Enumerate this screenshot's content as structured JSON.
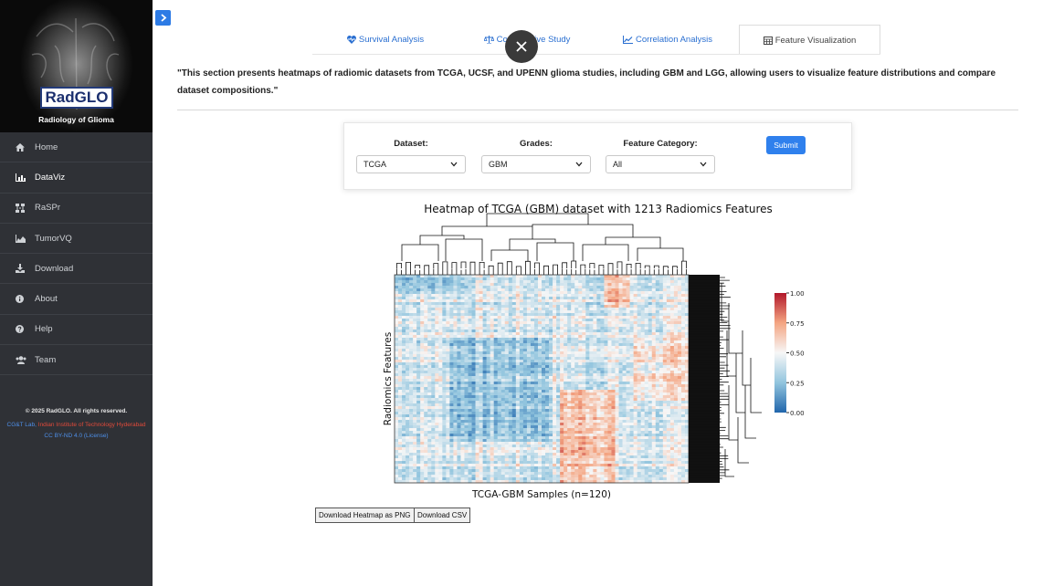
{
  "brand": {
    "logo": "RadGLO",
    "subtitle": "Radiology of Glioma"
  },
  "sidebar": {
    "items": [
      {
        "label": "Home",
        "icon": "home-icon"
      },
      {
        "label": "DataViz",
        "icon": "bar-chart-icon",
        "active": true
      },
      {
        "label": "RaSPr",
        "icon": "network-icon"
      },
      {
        "label": "TumorVQ",
        "icon": "area-chart-icon"
      },
      {
        "label": "Download",
        "icon": "download-icon"
      },
      {
        "label": "About",
        "icon": "info-icon"
      },
      {
        "label": "Help",
        "icon": "help-icon"
      },
      {
        "label": "Team",
        "icon": "users-icon"
      }
    ],
    "footer": {
      "copyright": "© 2025 RadGLO. All rights reserved.",
      "lab": "CG&T Lab,",
      "institute": "Indian Institute of Technology Hyderabad",
      "license": "CC BY-ND 4.0 (License)"
    }
  },
  "tabs": [
    {
      "label": "Survival Analysis",
      "icon": "heartbeat-icon"
    },
    {
      "label": "Comparative Study",
      "icon": "balance-scale-icon"
    },
    {
      "label": "Correlation Analysis",
      "icon": "line-chart-icon"
    },
    {
      "label": "Feature Visualization",
      "icon": "table-icon",
      "active": true
    }
  ],
  "description": "\"This section presents heatmaps of radiomic datasets from TCGA, UCSF, and UPENN glioma studies, including GBM and LGG, allowing users to visualize feature distributions and compare dataset compositions.\"",
  "form": {
    "dataset_label": "Dataset:",
    "dataset_value": "TCGA",
    "grades_label": "Grades:",
    "grades_value": "GBM",
    "category_label": "Feature Category:",
    "category_value": "All",
    "submit_label": "Submit"
  },
  "chart_data": {
    "type": "heatmap",
    "title": "Heatmap of TCGA (GBM) dataset with 1213 Radiomics Features",
    "xlabel": "TCGA-GBM Samples (n=120)",
    "ylabel": "Radiomics Features",
    "colorbar": {
      "min": 0.0,
      "max": 1.0,
      "ticks": [
        "0.00",
        "0.25",
        "0.50",
        "0.75",
        "1.00"
      ],
      "colormap": "blue-white-red"
    },
    "n_samples": 120,
    "n_features": 1213,
    "dendrograms": [
      "top-columns",
      "right-rows"
    ]
  },
  "buttons": {
    "download_png": "Download Heatmap as PNG",
    "download_csv": "Download CSV"
  },
  "colors": {
    "accent": "#2f80ed",
    "sidebar_bg": "#2f3136",
    "link": "#2a6fd1"
  }
}
